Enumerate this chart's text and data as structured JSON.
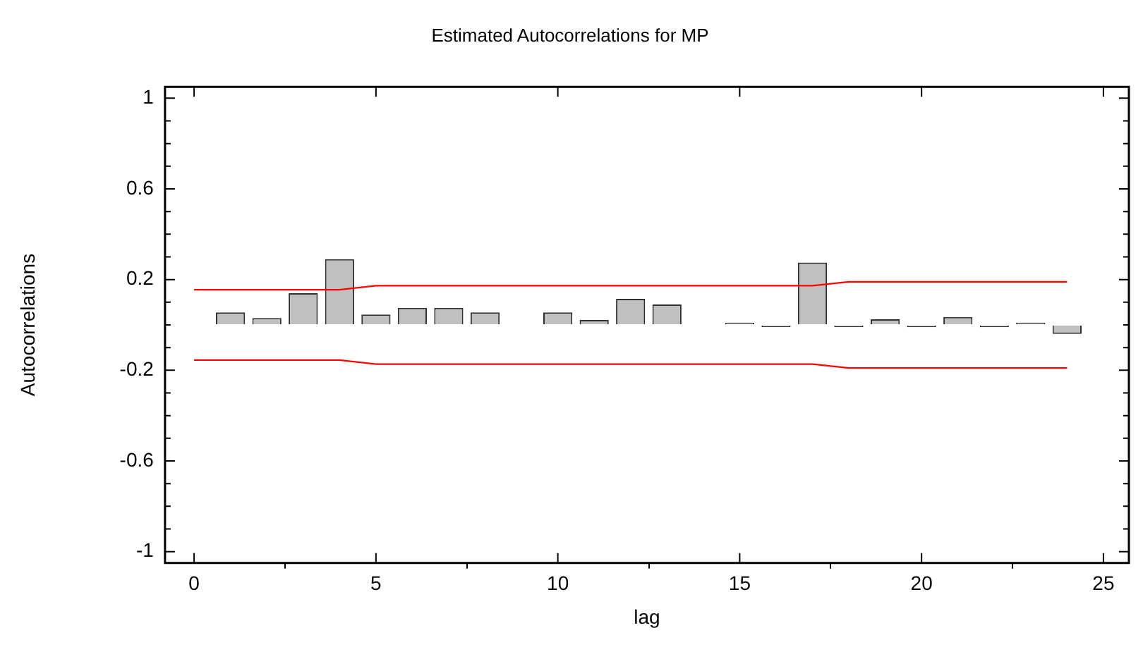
{
  "chart_data": {
    "type": "bar",
    "title": "Estimated Autocorrelations for MP",
    "xlabel": "lag",
    "ylabel": "Autocorrelations",
    "x": [
      1,
      2,
      3,
      4,
      5,
      6,
      7,
      8,
      9,
      10,
      11,
      12,
      13,
      14,
      15,
      16,
      17,
      18,
      19,
      20,
      21,
      22,
      23,
      24
    ],
    "xlim": [
      -0.8,
      25.7
    ],
    "xticks": [
      0,
      5,
      10,
      15,
      20,
      25
    ],
    "ylim": [
      -1.05,
      1.05
    ],
    "yticks": [
      {
        "value": -1,
        "label": "-1"
      },
      {
        "value": -0.9,
        "label": null
      },
      {
        "value": -0.8,
        "label": null
      },
      {
        "value": -0.7,
        "label": null
      },
      {
        "value": -0.6,
        "label": "-0.6"
      },
      {
        "value": -0.5,
        "label": null
      },
      {
        "value": -0.4,
        "label": null
      },
      {
        "value": -0.3,
        "label": null
      },
      {
        "value": -0.2,
        "label": "-0.2"
      },
      {
        "value": -0.1,
        "label": null
      },
      {
        "value": 0,
        "label": null
      },
      {
        "value": 0.1,
        "label": null
      },
      {
        "value": 0.2,
        "label": "0.2"
      },
      {
        "value": 0.3,
        "label": null
      },
      {
        "value": 0.4,
        "label": null
      },
      {
        "value": 0.5,
        "label": null
      },
      {
        "value": 0.6,
        "label": "0.6"
      },
      {
        "value": 0.7,
        "label": null
      },
      {
        "value": 0.8,
        "label": null
      },
      {
        "value": 0.9,
        "label": null
      },
      {
        "value": 1,
        "label": "1"
      }
    ],
    "grid": false,
    "legend": false,
    "series": [
      {
        "color": "#c0c0c0",
        "values": [
          0.055,
          0.03,
          0.14,
          0.29,
          0.046,
          0.075,
          0.075,
          0.055,
          0.0,
          0.055,
          0.022,
          0.115,
          0.09,
          null,
          0.01,
          -0.01,
          0.275,
          -0.01,
          0.025,
          -0.01,
          0.035,
          -0.01,
          0.01,
          -0.04
        ]
      },
      {
        "type": "line",
        "color": "#ff0000",
        "x": [
          0,
          4,
          5,
          17,
          18,
          24
        ],
        "values": [
          0.155,
          0.155,
          0.173,
          0.173,
          0.19,
          0.19
        ]
      },
      {
        "type": "line",
        "color": "#ff0000",
        "x": [
          0,
          4,
          5,
          17,
          18,
          24
        ],
        "values": [
          -0.155,
          -0.155,
          -0.173,
          -0.173,
          -0.19,
          -0.19
        ]
      }
    ]
  }
}
